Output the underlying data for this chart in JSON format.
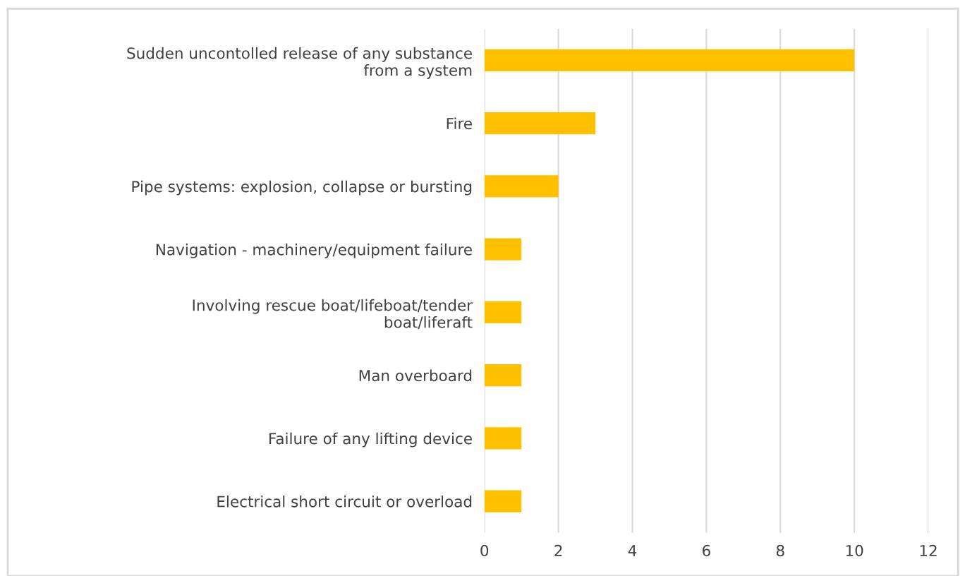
{
  "chart_data": {
    "type": "bar",
    "orientation": "horizontal",
    "categories": [
      "Sudden uncontolled release of any substance from a system",
      "Fire",
      "Pipe systems: explosion, collapse or bursting",
      "Navigation - machinery/equipment failure",
      "Involving rescue boat/lifeboat/tender boat/liferaft",
      "Man overboard",
      "Failure of any lifting device",
      "Electrical short circuit or overload"
    ],
    "values": [
      10,
      3,
      2,
      1,
      1,
      1,
      1,
      1
    ],
    "color": "#ffc000",
    "xlim": [
      0,
      12
    ],
    "xticks": [
      0,
      2,
      4,
      6,
      8,
      10,
      12
    ],
    "grid": "x"
  }
}
